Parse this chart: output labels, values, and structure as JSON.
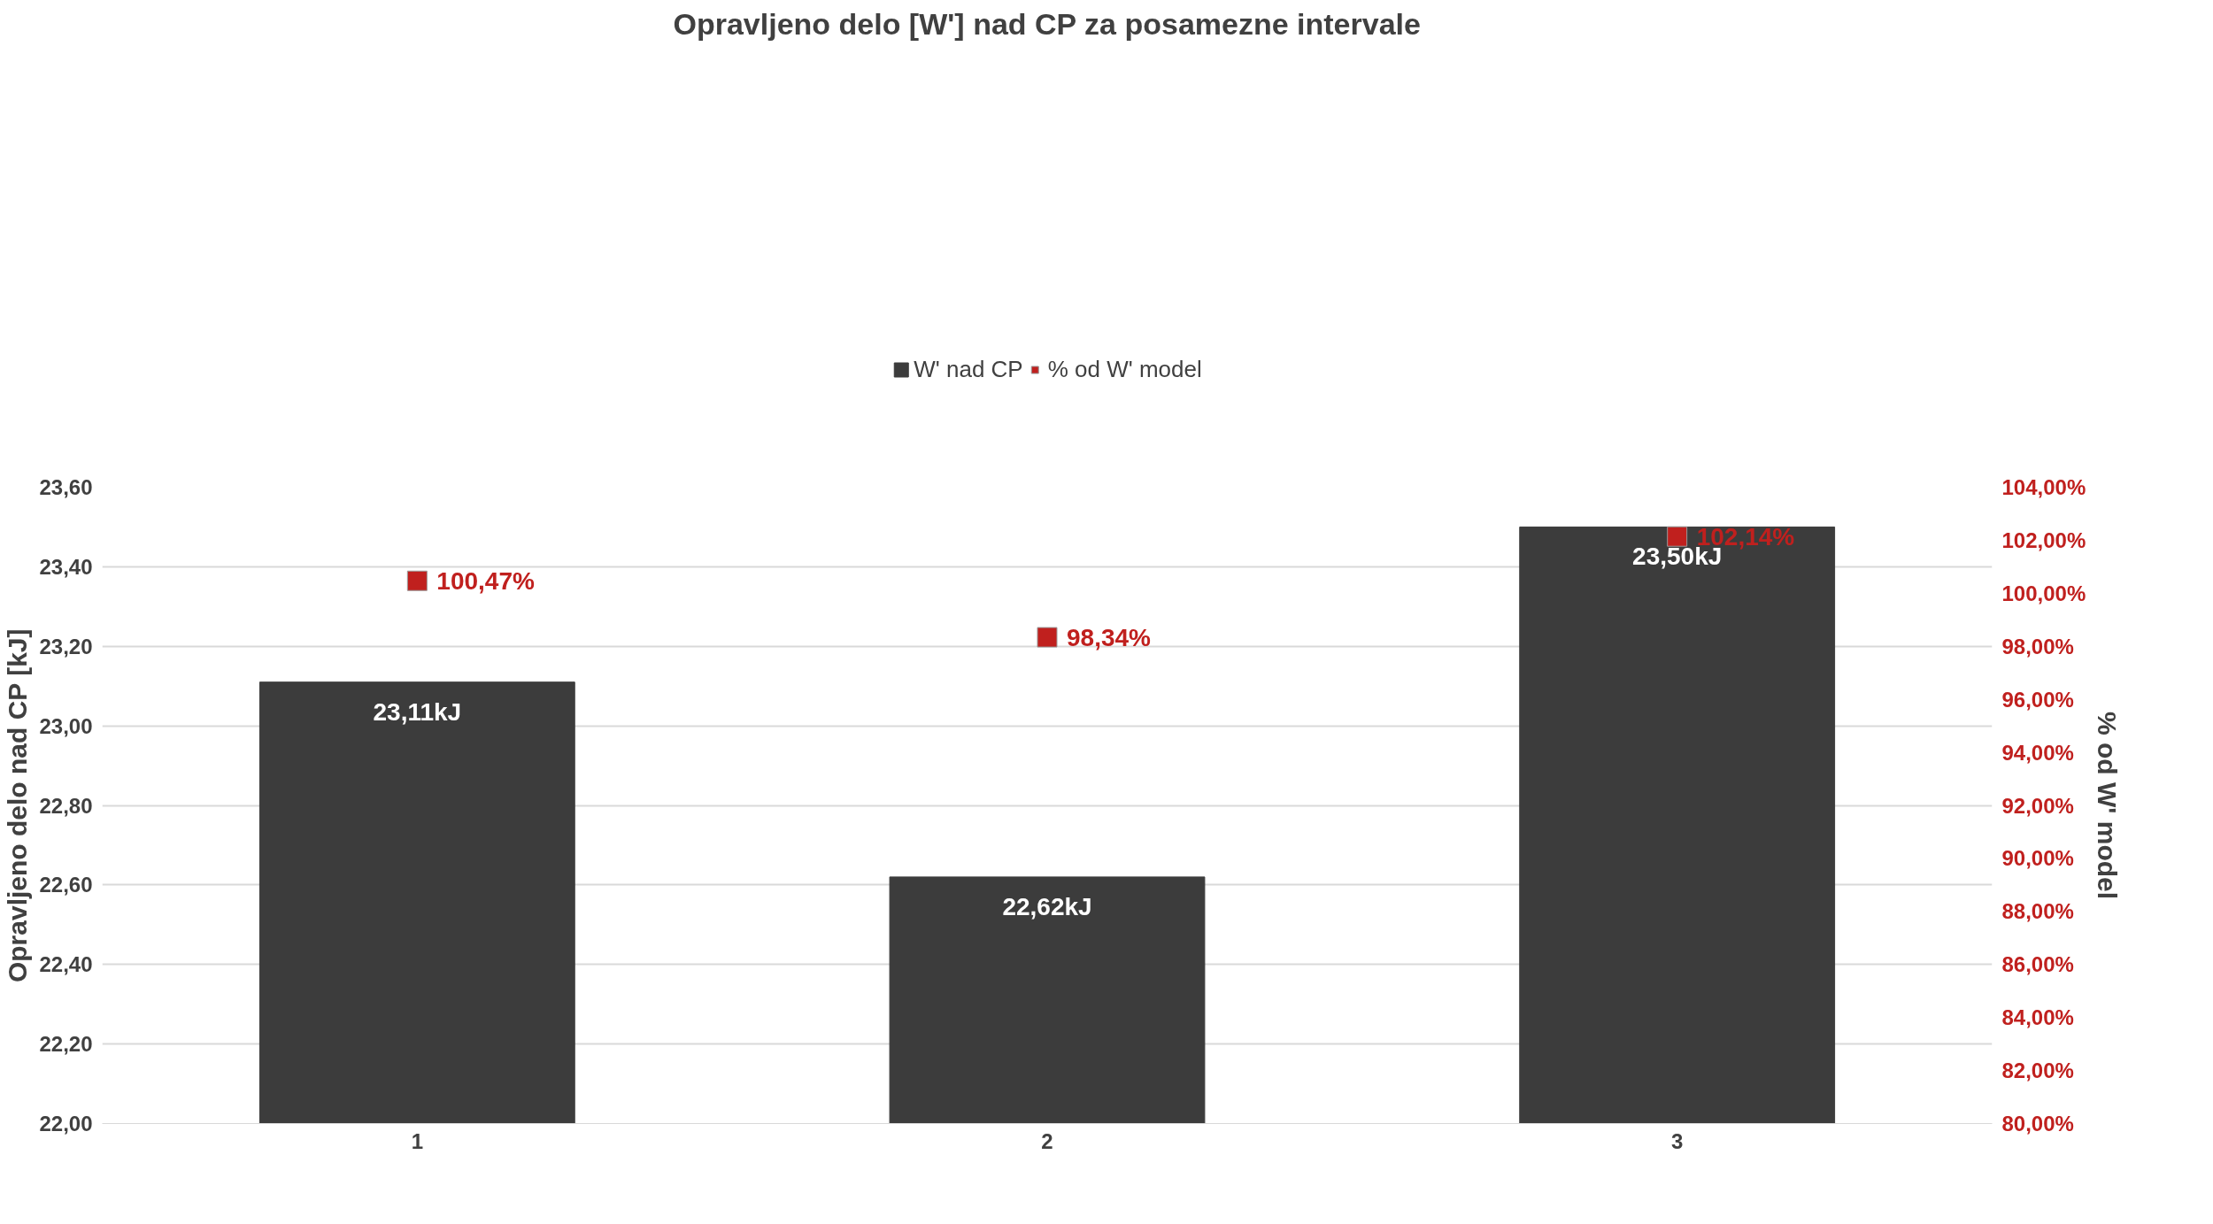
{
  "chart_data": {
    "type": "bar",
    "title": "Opravljeno delo [W'] nad CP za posamezne intervale",
    "categories": [
      "1",
      "2",
      "3"
    ],
    "ylabel": "Opravljeno delo nad CP [kJ]",
    "y2label": "% od W' model",
    "series": [
      {
        "name": "W' nad CP",
        "color": "#3c3c3c",
        "values": [
          23.11,
          22.62,
          23.5
        ],
        "value_labels": [
          "23,11kJ",
          "22,62kJ",
          "23,50kJ"
        ]
      },
      {
        "name": "% od W' model",
        "type": "scatter",
        "axis": "y2",
        "marker": "square",
        "color": "#c0201e",
        "values": [
          100.47,
          98.34,
          102.14
        ],
        "value_labels": [
          "100,47%",
          "98,34%",
          "102,14%"
        ]
      }
    ],
    "ylim": [
      22.0,
      23.6
    ],
    "yticks": [
      {
        "value": 22.0,
        "label": "22,00"
      },
      {
        "value": 22.2,
        "label": "22,20"
      },
      {
        "value": 22.4,
        "label": "22,40"
      },
      {
        "value": 22.6,
        "label": "22,60"
      },
      {
        "value": 22.8,
        "label": "22,80"
      },
      {
        "value": 23.0,
        "label": "23,00"
      },
      {
        "value": 23.2,
        "label": "23,20"
      },
      {
        "value": 23.4,
        "label": "23,40"
      },
      {
        "value": 23.6,
        "label": "23,60"
      }
    ],
    "y2lim": [
      80,
      104
    ],
    "y2ticks": [
      {
        "value": 80,
        "label": "80,00%"
      },
      {
        "value": 82,
        "label": "82,00%"
      },
      {
        "value": 84,
        "label": "84,00%"
      },
      {
        "value": 86,
        "label": "86,00%"
      },
      {
        "value": 88,
        "label": "88,00%"
      },
      {
        "value": 90,
        "label": "90,00%"
      },
      {
        "value": 92,
        "label": "92,00%"
      },
      {
        "value": 94,
        "label": "94,00%"
      },
      {
        "value": 96,
        "label": "96,00%"
      },
      {
        "value": 98,
        "label": "98,00%"
      },
      {
        "value": 100,
        "label": "100,00%"
      },
      {
        "value": 102,
        "label": "102,00%"
      },
      {
        "value": 104,
        "label": "104,00%"
      }
    ],
    "grid": "y",
    "legend": "top"
  }
}
